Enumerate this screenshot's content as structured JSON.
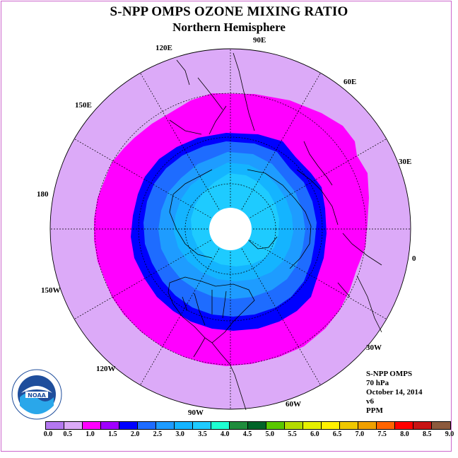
{
  "header": {
    "title": "S-NPP OMPS OZONE MIXING RATIO",
    "subtitle": "Northern Hemisphere"
  },
  "map": {
    "projection": "north-polar-stereographic",
    "longitude_labels": [
      "90E",
      "60E",
      "30E",
      "0",
      "30W",
      "60W",
      "90W",
      "120W",
      "150W",
      "180",
      "150E",
      "120E"
    ],
    "fill_colors": {
      "outer": "#dcaaf8",
      "magenta": "#ff00ff",
      "blue": "#0000ff",
      "mid_blue": "#1e6cff",
      "light_blue": "#1e9cff",
      "sky": "#14b4ff",
      "cyan": "#1ecbff",
      "pole_missing": "#ffffff",
      "land_outline": "#000000",
      "grid": "#000000"
    },
    "icons": [
      "noaa-logo-icon"
    ]
  },
  "info": {
    "instrument": "S-NPP OMPS",
    "level": "70 hPa",
    "date": "October 14, 2014",
    "version": "v6",
    "units": "PPM"
  },
  "colorbar": {
    "colors": [
      "#b478f0",
      "#dcaaf8",
      "#ff00ff",
      "#a000ff",
      "#0000ff",
      "#1e6cff",
      "#1e9cff",
      "#14b4ff",
      "#1ecbff",
      "#1effd2",
      "#1e8c3c",
      "#006428",
      "#5ac800",
      "#b4dc00",
      "#e6f000",
      "#fff000",
      "#f0c800",
      "#f0a000",
      "#ff6400",
      "#ff0000",
      "#c81414",
      "#8c5a3c"
    ],
    "tick_labels": [
      "0.0",
      "0.5",
      "1.0",
      "1.5",
      "2.0",
      "2.5",
      "3.0",
      "3.5",
      "4.0",
      "4.5",
      "5.0",
      "5.5",
      "6.0",
      "6.5",
      "7.0",
      "7.5",
      "8.0",
      "8.5",
      "9.0"
    ]
  }
}
